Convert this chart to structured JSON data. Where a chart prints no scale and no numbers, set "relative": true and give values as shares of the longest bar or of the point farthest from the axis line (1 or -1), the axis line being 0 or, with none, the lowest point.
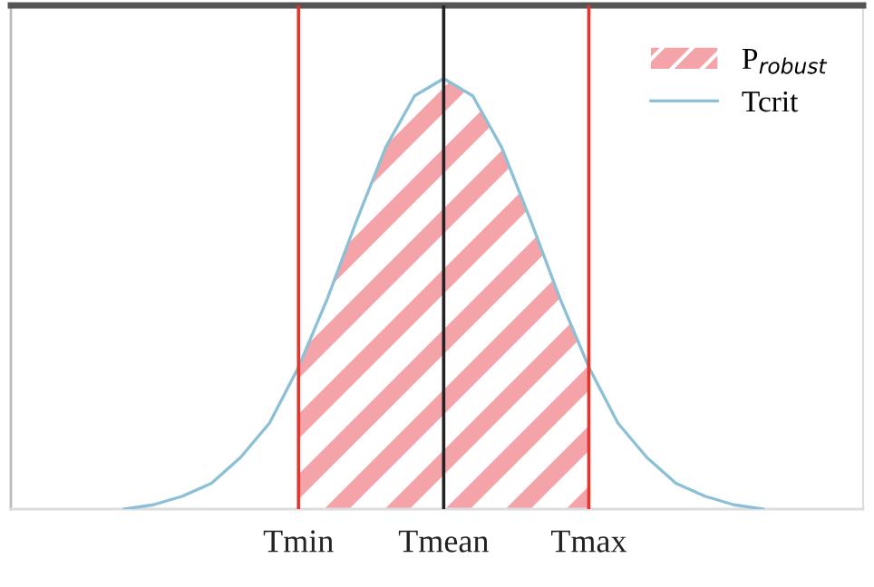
{
  "chart_data": {
    "type": "line",
    "relative": true,
    "categories": [
      null,
      null,
      null,
      null,
      null,
      null,
      "Tmin",
      null,
      null,
      null,
      null,
      "Tmean",
      null,
      null,
      null,
      null,
      "Tmax",
      null,
      null,
      null,
      null,
      null,
      null
    ],
    "series": [
      {
        "name": "P$_{robust}$",
        "type": "area",
        "color": "#f4a3a8",
        "values": [
          null,
          null,
          null,
          null,
          null,
          null,
          0.33,
          0.49,
          0.67,
          0.84,
          0.96,
          1.0,
          0.96,
          0.84,
          0.67,
          0.49,
          0.33,
          null,
          null,
          null,
          null,
          null,
          null
        ]
      },
      {
        "name": "Tcrit",
        "color": "#8cc0d6",
        "values": [
          0.0,
          0.01,
          0.03,
          0.06,
          0.12,
          0.2,
          0.33,
          0.49,
          0.67,
          0.84,
          0.96,
          1.0,
          0.96,
          0.84,
          0.67,
          0.49,
          0.33,
          0.2,
          0.12,
          0.06,
          0.03,
          0.01,
          0.0
        ]
      }
    ],
    "ref_lines": [
      {
        "axis": "x",
        "value": "Tmin",
        "color": "#e8332a"
      },
      {
        "axis": "x",
        "value": "Tmean",
        "color": "#222222"
      },
      {
        "axis": "x",
        "value": "Tmax",
        "color": "#e8332a"
      }
    ],
    "legend": "top right",
    "grid": false
  }
}
